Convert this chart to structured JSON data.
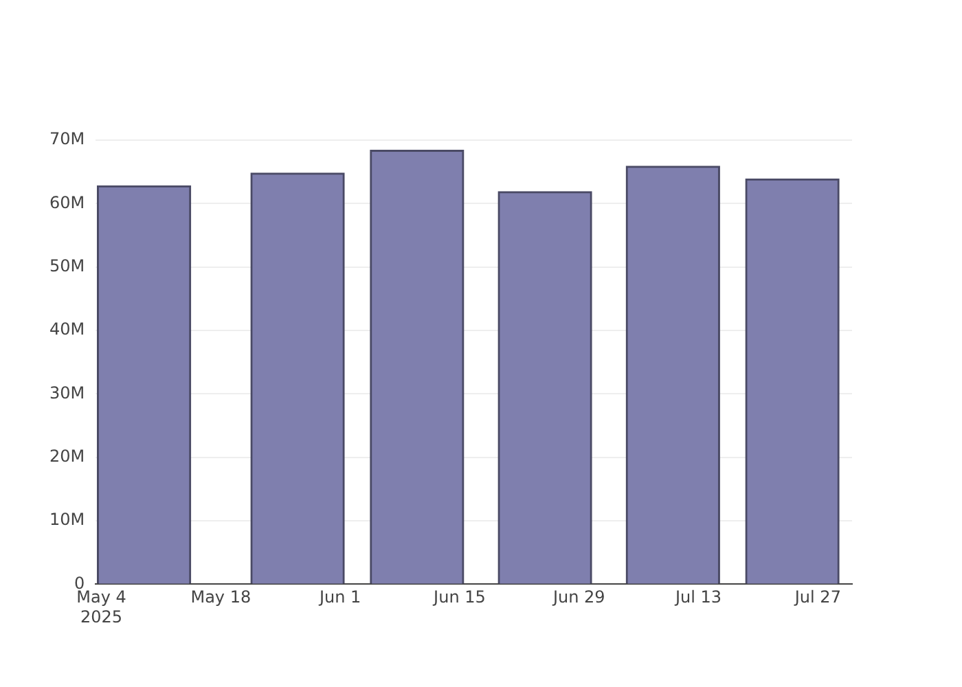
{
  "chart_data": {
    "type": "bar",
    "x": [
      "2025-05-09",
      "2025-05-27",
      "2025-06-10",
      "2025-06-25",
      "2025-07-10",
      "2025-07-24"
    ],
    "values": [
      62800000,
      64800000,
      68400000,
      61900000,
      65900000,
      63900000
    ],
    "color": "#7f7fae",
    "xlim": [
      "2025-05-03T08:00",
      "2025-07-31"
    ],
    "xticks": [
      {
        "value": "2025-05-04",
        "label": "May 4\n2025"
      },
      {
        "value": "2025-05-18",
        "label": "May 18"
      },
      {
        "value": "2025-06-01",
        "label": "Jun 1"
      },
      {
        "value": "2025-06-15",
        "label": "Jun 15"
      },
      {
        "value": "2025-06-29",
        "label": "Jun 29"
      },
      {
        "value": "2025-07-13",
        "label": "Jul 13"
      },
      {
        "value": "2025-07-27",
        "label": "Jul 27"
      }
    ],
    "ylim": [
      0,
      70000000
    ],
    "yticks": [
      0,
      {
        "value": 10000000,
        "label": "10M"
      },
      {
        "value": 20000000,
        "label": "20M"
      },
      {
        "value": 30000000,
        "label": "30M"
      },
      {
        "value": 40000000,
        "label": "40M"
      },
      {
        "value": 50000000,
        "label": "50M"
      },
      {
        "value": 60000000,
        "label": "60M"
      },
      {
        "value": 70000000,
        "label": "70M"
      }
    ],
    "grid": "y",
    "legend": false
  }
}
